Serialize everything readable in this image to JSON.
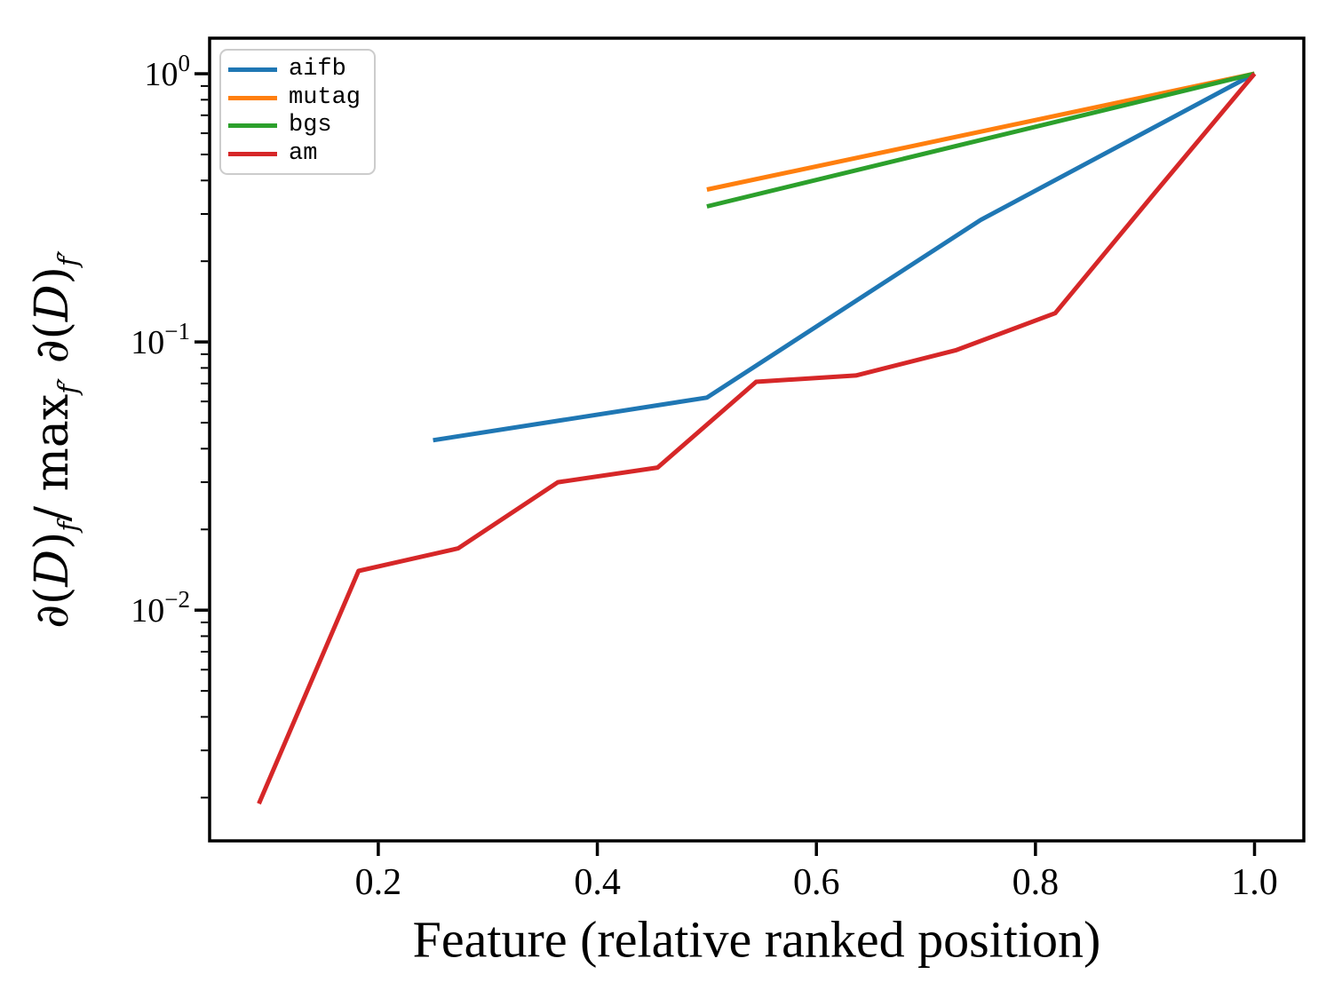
{
  "chart_data": {
    "type": "line",
    "title": "",
    "xlabel": "Feature (relative ranked position)",
    "ylabel": "∂(𝒟)_f / max_f′ ∂(𝒟)_f′",
    "ylabel_parts": [
      {
        "t": "∂(",
        "k": "op"
      },
      {
        "t": "D",
        "k": "cal"
      },
      {
        "t": ")",
        "k": "op"
      },
      {
        "t": "f",
        "k": "sub"
      },
      {
        "t": "/",
        "k": "op"
      },
      {
        "t": " max",
        "k": "op"
      },
      {
        "t": "f′",
        "k": "sub"
      },
      {
        "t": " ∂(",
        "k": "op"
      },
      {
        "t": "D",
        "k": "cal"
      },
      {
        "t": ")",
        "k": "op"
      },
      {
        "t": "f′",
        "k": "sub"
      }
    ],
    "x_scale": "linear",
    "y_scale": "log",
    "xlim": [
      0.046,
      1.045
    ],
    "ylim": [
      0.00138,
      1.357
    ],
    "x_ticks": [
      0.2,
      0.4,
      0.6,
      0.8,
      1.0
    ],
    "x_tick_labels": [
      "0.2",
      "0.4",
      "0.6",
      "0.8",
      "1.0"
    ],
    "y_major_ticks": [
      {
        "value": 1,
        "base": "10",
        "exponent": "0"
      },
      {
        "value": 0.1,
        "base": "10",
        "exponent": "−1"
      },
      {
        "value": 0.01,
        "base": "10",
        "exponent": "−2"
      }
    ],
    "y_minor_ticks": [
      0.9,
      0.8,
      0.7,
      0.6,
      0.5,
      0.4,
      0.3,
      0.2,
      0.09,
      0.08,
      0.07,
      0.06,
      0.05,
      0.04,
      0.03,
      0.02,
      0.009,
      0.008,
      0.007,
      0.006,
      0.005,
      0.004,
      0.003,
      0.002
    ],
    "grid": false,
    "legend_position": "upper left",
    "series": [
      {
        "name": "aifb",
        "color": "#1f77b4",
        "points": [
          [
            0.25,
            0.043
          ],
          [
            0.5,
            0.062
          ],
          [
            0.75,
            0.285
          ],
          [
            1.0,
            1.0
          ]
        ]
      },
      {
        "name": "mutag",
        "color": "#ff7f0e",
        "points": [
          [
            0.5,
            0.37
          ],
          [
            1.0,
            1.0
          ]
        ]
      },
      {
        "name": "bgs",
        "color": "#2ca02c",
        "points": [
          [
            0.5,
            0.32
          ],
          [
            1.0,
            1.0
          ]
        ]
      },
      {
        "name": "am",
        "color": "#d62728",
        "points": [
          [
            0.091,
            0.0019
          ],
          [
            0.182,
            0.014
          ],
          [
            0.273,
            0.017
          ],
          [
            0.364,
            0.03
          ],
          [
            0.455,
            0.034
          ],
          [
            0.545,
            0.071
          ],
          [
            0.636,
            0.075
          ],
          [
            0.727,
            0.093
          ],
          [
            0.818,
            0.128
          ],
          [
            0.909,
            0.36
          ],
          [
            1.0,
            1.0
          ]
        ]
      }
    ]
  }
}
